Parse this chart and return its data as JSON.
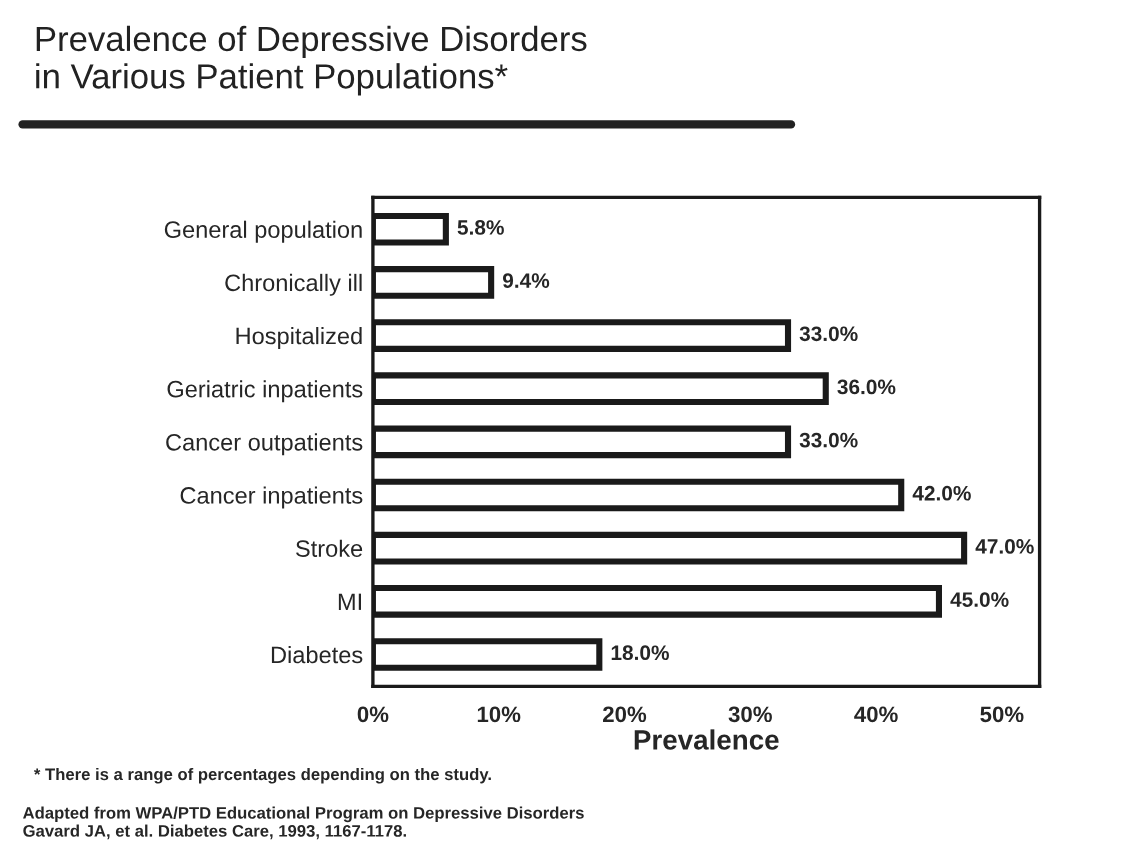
{
  "chart_data": {
    "type": "bar",
    "orientation": "horizontal",
    "title": "Prevalence of Depressive Disorders\nin Various Patient Populations*",
    "xlabel": "Prevalence",
    "categories": [
      "General population",
      "Chronically ill",
      "Hospitalized",
      "Geriatric inpatients",
      "Cancer outpatients",
      "Cancer inpatients",
      "Stroke",
      "MI",
      "Diabetes"
    ],
    "values": [
      5.8,
      9.4,
      33.0,
      36.0,
      33.0,
      42.0,
      47.0,
      45.0,
      18.0
    ],
    "value_labels": [
      "5.8%",
      "9.4%",
      "33.0%",
      "36.0%",
      "33.0%",
      "42.0%",
      "47.0%",
      "45.0%",
      "18.0%"
    ],
    "color": "#ffffff",
    "xlim": [
      0,
      53
    ],
    "xticks": [
      {
        "value": 0,
        "label": "0%"
      },
      {
        "value": 10,
        "label": "10%"
      },
      {
        "value": 20,
        "label": "20%"
      },
      {
        "value": 30,
        "label": "30%"
      },
      {
        "value": 40,
        "label": "40%"
      },
      {
        "value": 50,
        "label": "50%"
      }
    ],
    "grid": false,
    "annotations": [
      "* There is a range of percentages depending on the study.",
      "Adapted from WPA/PTD Educational Program on Depressive Disorders\nGavard JA, et al. Diabetes Care, 1993, 1167-1178."
    ]
  }
}
